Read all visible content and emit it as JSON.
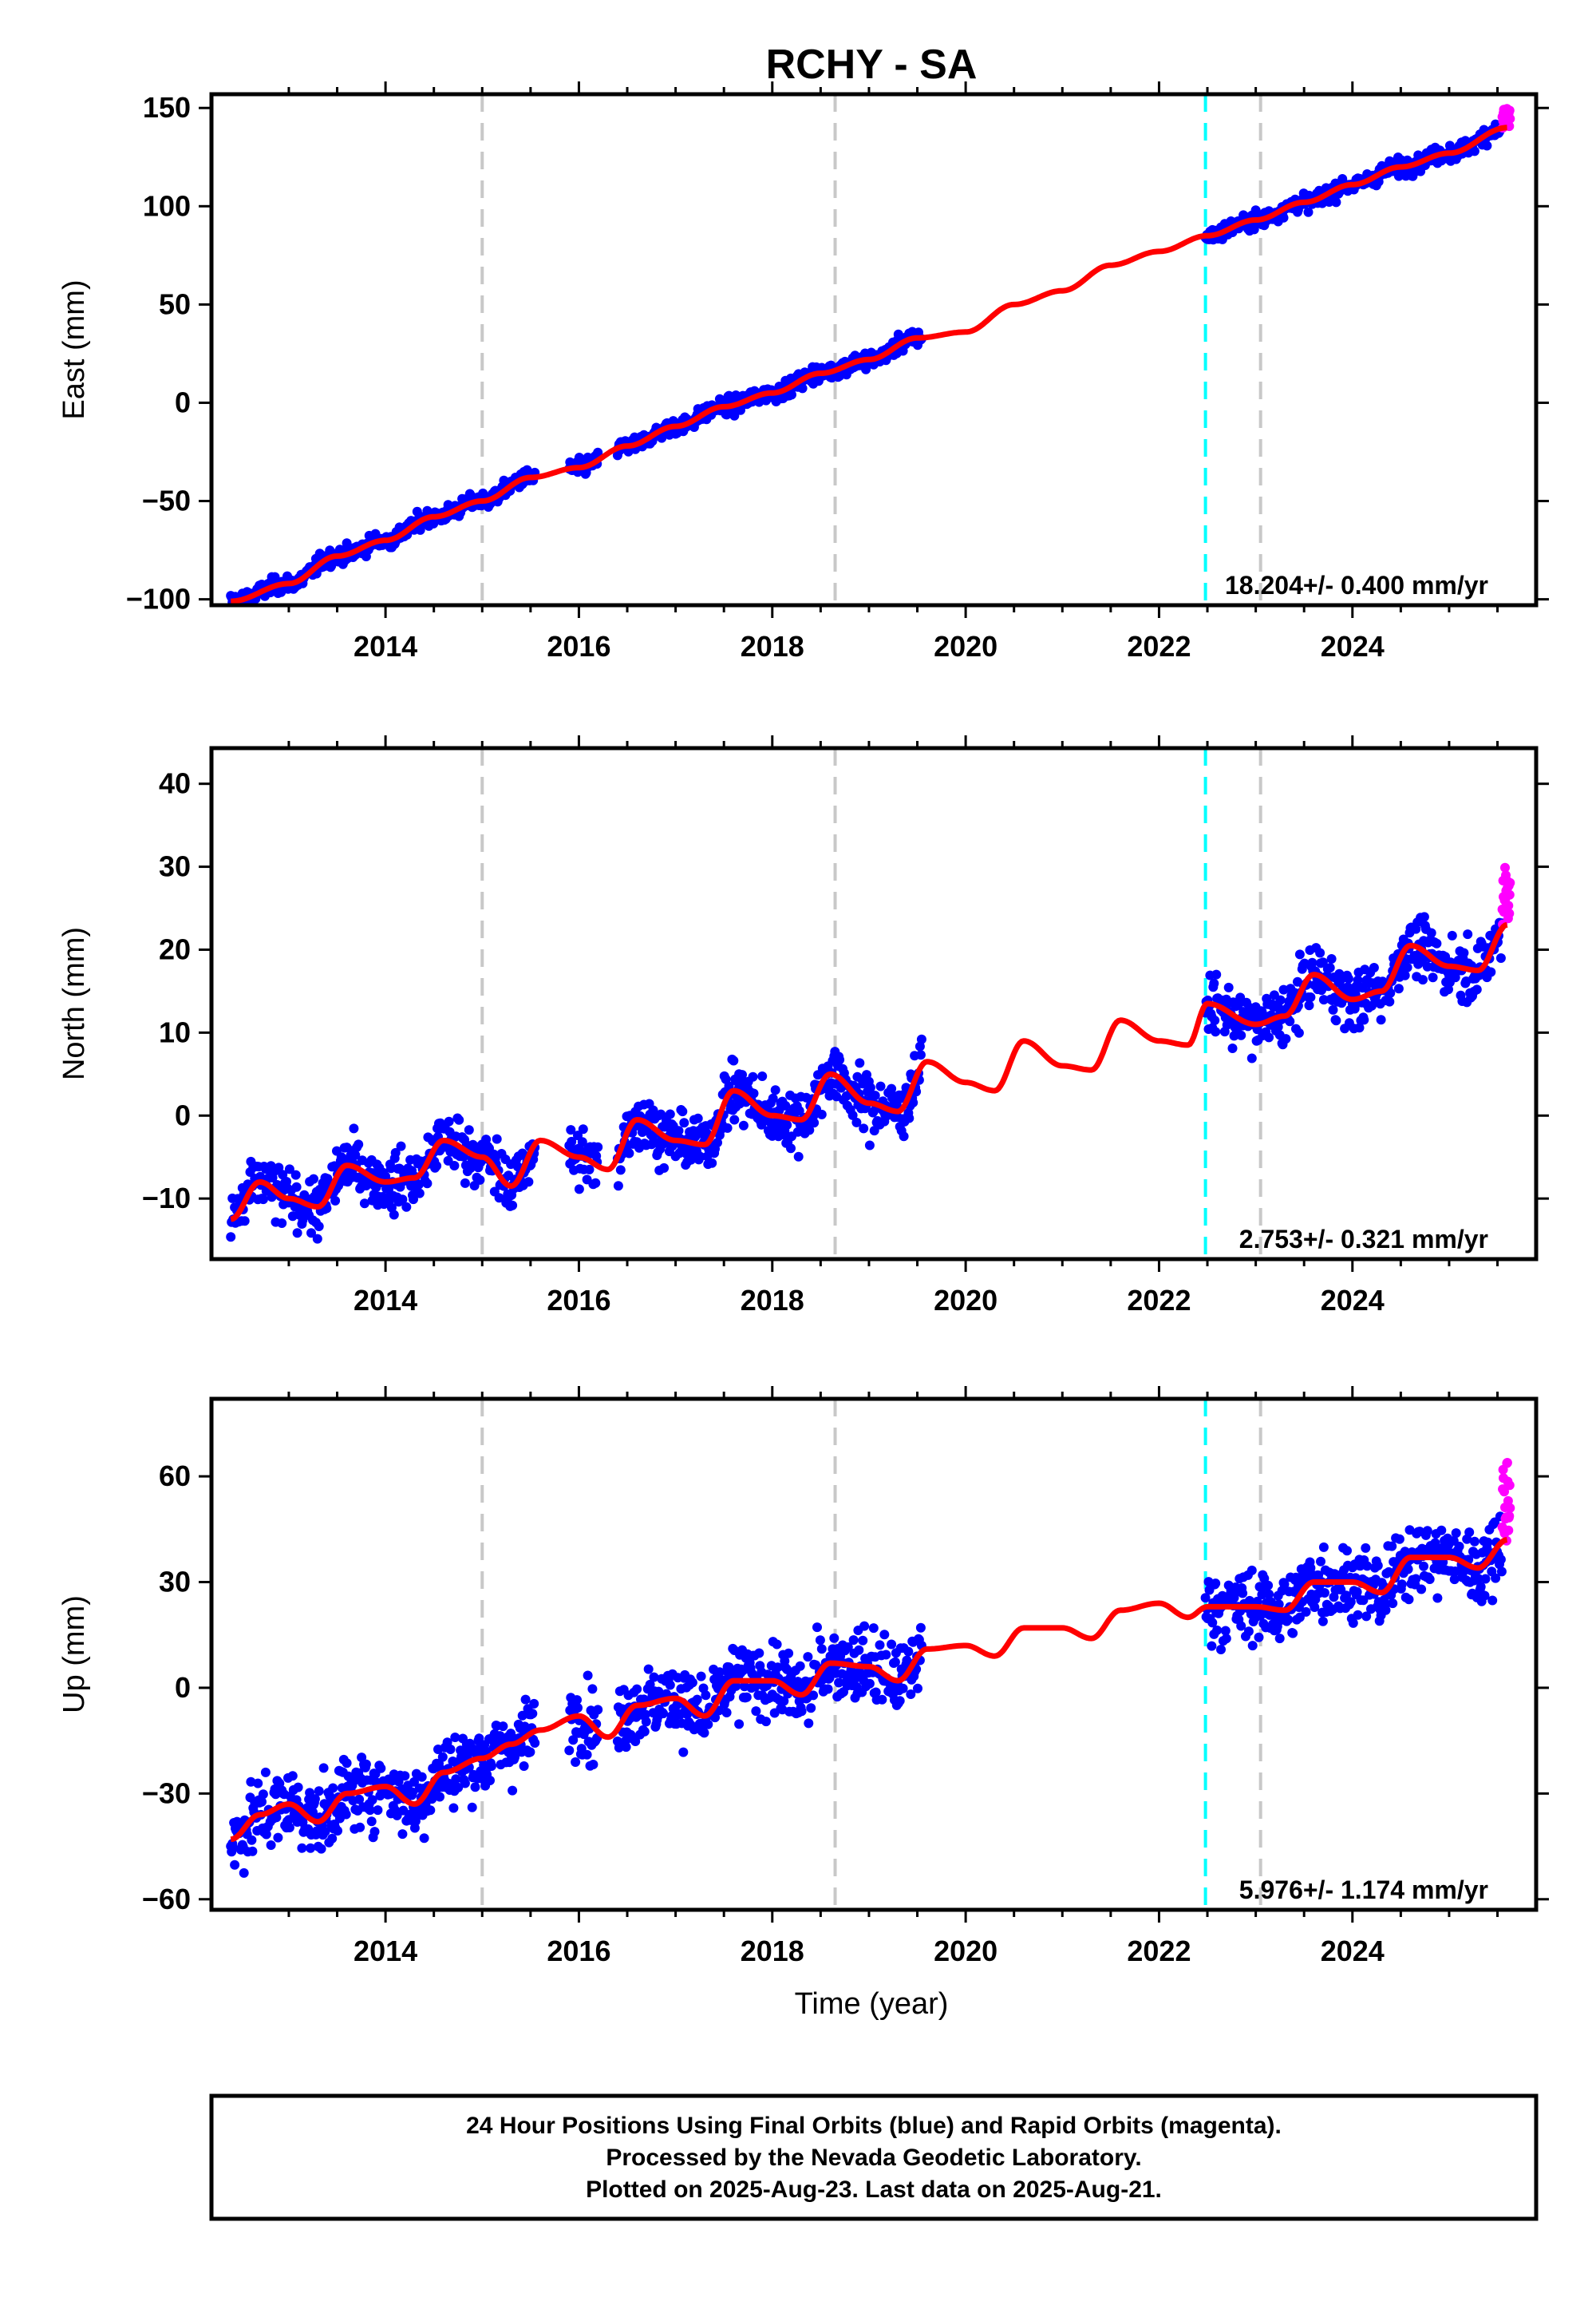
{
  "title": "RCHY - SA",
  "xlabel": "Time (year)",
  "footer": [
    "24 Hour Positions Using Final Orbits (blue) and Rapid Orbits (magenta).",
    "Processed by the Nevada Geodetic Laboratory.",
    "Plotted on 2025-Aug-23. Last data on 2025-Aug-21."
  ],
  "colors": {
    "final_orbits": "#0000ff",
    "rapid_orbits": "#ff00ff",
    "model": "#ff0000",
    "grey_event_line": "#c8c8c8",
    "cyan_event_line": "#00ffff"
  },
  "chart_data": [
    {
      "type": "scatter",
      "component": "east",
      "ylabel": "East (mm)",
      "xlim": [
        2012.2,
        2025.9
      ],
      "ylim": [
        -103,
        157
      ],
      "xticks": [
        2014,
        2016,
        2018,
        2020,
        2022,
        2024
      ],
      "yticks": [
        -100,
        -50,
        0,
        50,
        100,
        150
      ],
      "rate_label": "18.204+/- 0.400 mm/yr",
      "grey_event_lines": [
        2015.0,
        2018.65,
        2023.05
      ],
      "cyan_event_line": 2022.48,
      "data_segments": [
        [
          2012.4,
          2015.55
        ],
        [
          2015.9,
          2016.2
        ],
        [
          2016.4,
          2019.55
        ],
        [
          2022.48,
          2025.55
        ]
      ],
      "rapid_segment": [
        2025.55,
        2025.63
      ],
      "series": [
        {
          "kind": "model",
          "x": [
            2012.4,
            2013.0,
            2013.5,
            2014.0,
            2014.5,
            2015.0,
            2015.5,
            2016.0,
            2016.5,
            2017.0,
            2017.5,
            2018.0,
            2018.5,
            2019.0,
            2019.5,
            2020.0,
            2020.5,
            2021.0,
            2021.5,
            2022.0,
            2022.5,
            2023.0,
            2023.5,
            2024.0,
            2024.5,
            2025.0,
            2025.6
          ],
          "y": [
            -101,
            -92,
            -78,
            -70,
            -58,
            -50,
            -38,
            -33,
            -22,
            -12,
            -2,
            5,
            15,
            22,
            33,
            36,
            50,
            57,
            70,
            77,
            85,
            93,
            102,
            111,
            120,
            127,
            140
          ]
        }
      ]
    },
    {
      "type": "scatter",
      "component": "north",
      "ylabel": "North (mm)",
      "xlim": [
        2012.2,
        2025.9
      ],
      "ylim": [
        -17.3,
        44.3
      ],
      "xticks": [
        2014,
        2016,
        2018,
        2020,
        2022,
        2024
      ],
      "yticks": [
        -10,
        0,
        10,
        20,
        30,
        40
      ],
      "rate_label": "2.753+/- 0.321 mm/yr",
      "grey_event_lines": [
        2015.0,
        2018.65,
        2023.05
      ],
      "cyan_event_line": 2022.48,
      "data_segments": [
        [
          2012.4,
          2015.55
        ],
        [
          2015.9,
          2016.2
        ],
        [
          2016.4,
          2019.55
        ],
        [
          2022.48,
          2025.55
        ]
      ],
      "rapid_segment": [
        2025.55,
        2025.63
      ],
      "series": [
        {
          "kind": "model",
          "x": [
            2012.4,
            2012.7,
            2013.0,
            2013.3,
            2013.6,
            2014.0,
            2014.3,
            2014.6,
            2015.0,
            2015.3,
            2015.6,
            2016.0,
            2016.3,
            2016.6,
            2017.0,
            2017.3,
            2017.6,
            2018.0,
            2018.3,
            2018.6,
            2019.0,
            2019.3,
            2019.6,
            2020.0,
            2020.3,
            2020.6,
            2021.0,
            2021.3,
            2021.6,
            2022.0,
            2022.3,
            2022.5,
            2023.0,
            2023.3,
            2023.6,
            2024.0,
            2024.3,
            2024.6,
            2025.0,
            2025.3,
            2025.6
          ],
          "y": [
            -12.5,
            -8.0,
            -10.0,
            -11.0,
            -6.0,
            -8.0,
            -7.5,
            -3.0,
            -5.0,
            -8.5,
            -3.0,
            -5.0,
            -6.5,
            -0.5,
            -3.0,
            -3.5,
            3.0,
            0.0,
            -0.5,
            5.0,
            1.5,
            0.5,
            6.5,
            4.0,
            3.0,
            9.0,
            6.0,
            5.5,
            11.5,
            9.0,
            8.5,
            13.5,
            11.0,
            12.0,
            17.0,
            14.0,
            15.0,
            20.5,
            18.0,
            17.5,
            23.0
          ]
        }
      ]
    },
    {
      "type": "scatter",
      "component": "up",
      "ylabel": "Up (mm)",
      "xlim": [
        2012.2,
        2025.9
      ],
      "ylim": [
        -63,
        82
      ],
      "xticks": [
        2014,
        2016,
        2018,
        2020,
        2022,
        2024
      ],
      "yticks": [
        -60,
        -30,
        0,
        30,
        60
      ],
      "rate_label": "5.976+/- 1.174 mm/yr",
      "grey_event_lines": [
        2015.0,
        2018.65,
        2023.05
      ],
      "cyan_event_line": 2022.48,
      "data_segments": [
        [
          2012.4,
          2015.55
        ],
        [
          2015.9,
          2016.2
        ],
        [
          2016.4,
          2019.55
        ],
        [
          2022.48,
          2025.55
        ]
      ],
      "rapid_segment": [
        2025.55,
        2025.63
      ],
      "series": [
        {
          "kind": "model",
          "x": [
            2012.4,
            2012.7,
            2013.0,
            2013.3,
            2013.6,
            2014.0,
            2014.3,
            2014.6,
            2015.0,
            2015.3,
            2015.6,
            2016.0,
            2016.3,
            2016.6,
            2017.0,
            2017.3,
            2017.6,
            2018.0,
            2018.3,
            2018.6,
            2019.0,
            2019.3,
            2019.6,
            2020.0,
            2020.3,
            2020.6,
            2021.0,
            2021.3,
            2021.6,
            2022.0,
            2022.3,
            2022.5,
            2023.0,
            2023.3,
            2023.6,
            2024.0,
            2024.3,
            2024.6,
            2025.0,
            2025.3,
            2025.6
          ],
          "y": [
            -43,
            -36,
            -33,
            -38,
            -30,
            -28,
            -33,
            -24,
            -20,
            -16,
            -12,
            -8,
            -14,
            -5,
            -3,
            -8,
            2,
            2,
            -2,
            7,
            6,
            2,
            11,
            12,
            9,
            17,
            17,
            14,
            22,
            24,
            20,
            23,
            23,
            22,
            30,
            30,
            27,
            37,
            37,
            34,
            42
          ]
        }
      ]
    }
  ]
}
